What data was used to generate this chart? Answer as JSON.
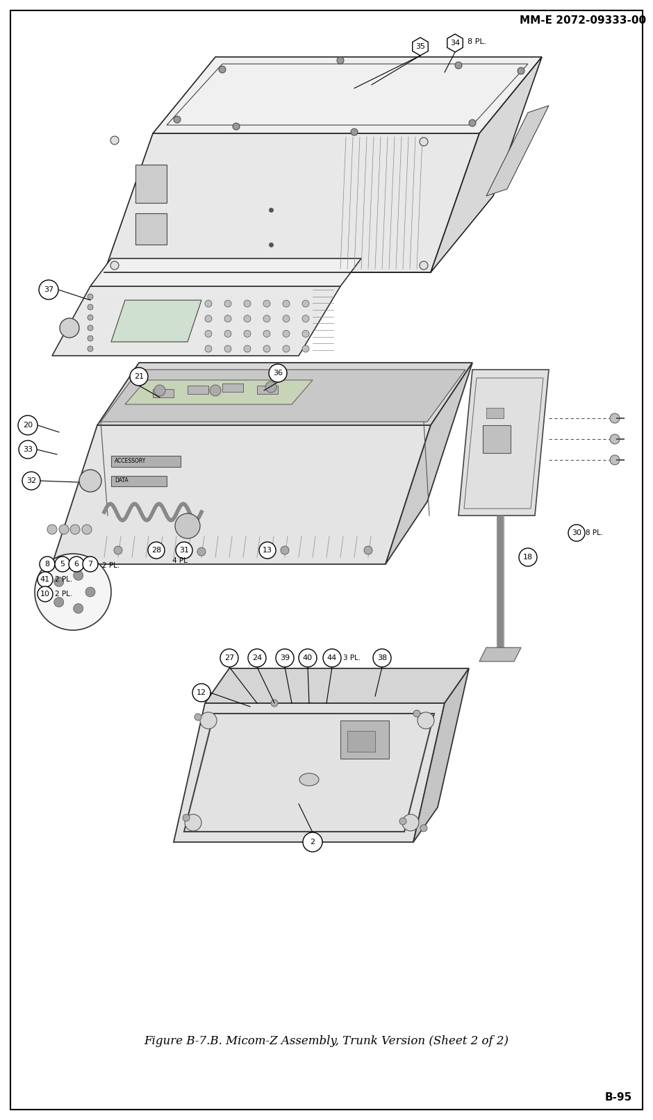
{
  "header_text": "MM-E 2072-09333-00",
  "footer_text": "B-95",
  "caption_text": "Figure B-7.B. Micom-Z Assembly, Trunk Version (Sheet 2 of 2)",
  "bg_color": "#ffffff",
  "text_color": "#000000",
  "page_width": 9.4,
  "page_height": 16.12,
  "dpi": 100
}
